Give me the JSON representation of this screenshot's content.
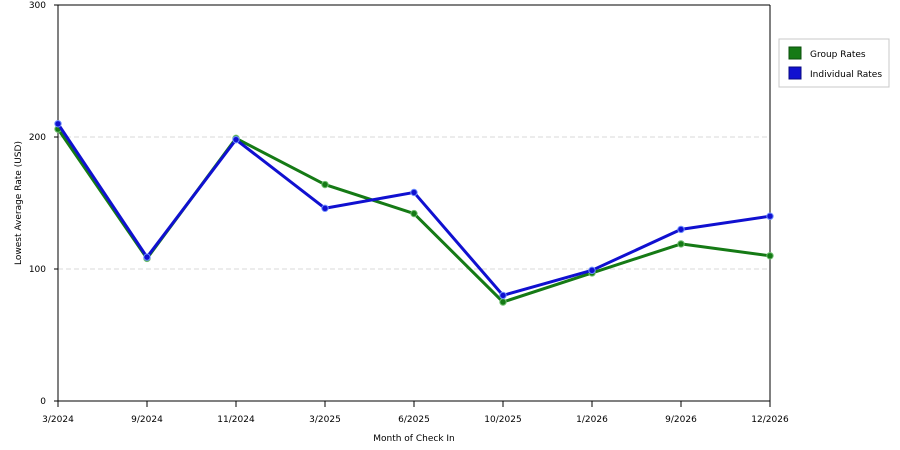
{
  "chart_data": {
    "type": "line",
    "title": "",
    "xlabel": "Month of Check In",
    "ylabel": "Lowest Average Rate (USD)",
    "categories": [
      "3/2024",
      "9/2024",
      "11/2024",
      "3/2025",
      "6/2025",
      "10/2025",
      "1/2026",
      "9/2026",
      "12/2026"
    ],
    "ylim": [
      0,
      300
    ],
    "yticks": [
      "0",
      "100",
      "200",
      "300"
    ],
    "grid": true,
    "legend_position": "top-right",
    "series": [
      {
        "name": "Group Rates",
        "color": "#157a15",
        "values": [
          206,
          108,
          199,
          164,
          142,
          75,
          97,
          119,
          110
        ]
      },
      {
        "name": "Individual Rates",
        "color": "#1010d0",
        "values": [
          210,
          109,
          198,
          146,
          158,
          80,
          99,
          130,
          140
        ]
      }
    ]
  }
}
